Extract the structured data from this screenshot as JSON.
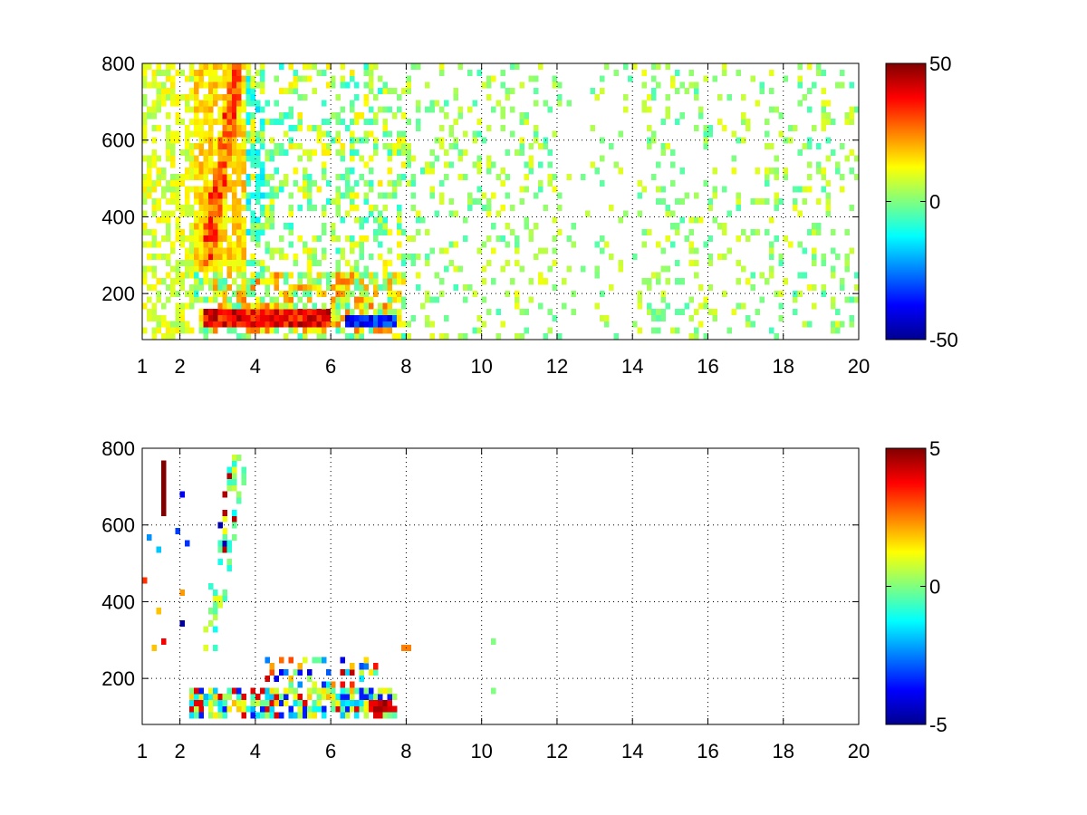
{
  "chart_data": [
    {
      "type": "heatmap",
      "title": "",
      "xlabel": "",
      "ylabel": "",
      "xlim": [
        1,
        20
      ],
      "ylim": [
        80,
        800
      ],
      "x_ticks": [
        1,
        2,
        4,
        6,
        8,
        10,
        12,
        14,
        16,
        18,
        20
      ],
      "x_tick_labels": [
        "1",
        "2",
        "4",
        "6",
        "8",
        "10",
        "12",
        "14",
        "16",
        "18",
        "20"
      ],
      "y_ticks": [
        200,
        400,
        600,
        800
      ],
      "y_tick_labels": [
        "200",
        "400",
        "600",
        "800"
      ],
      "grid": true,
      "colormap": "jet",
      "colorbar": {
        "range": [
          -50,
          50
        ],
        "ticks": [
          -50,
          0,
          50
        ],
        "tick_labels": [
          "-50",
          "0",
          "50"
        ]
      },
      "features": [
        {
          "x_range": [
            2.5,
            6.0
          ],
          "y": 140,
          "value": 40
        },
        {
          "x_range": [
            6.5,
            7.7
          ],
          "y": 130,
          "value": -40
        },
        {
          "x_range": [
            2.6,
            3.6
          ],
          "y_range": [
            280,
            800
          ],
          "value": 30
        },
        {
          "x_range": [
            3.6,
            4.2
          ],
          "y_range": [
            350,
            780
          ],
          "value": -15
        }
      ]
    },
    {
      "type": "heatmap",
      "title": "",
      "xlabel": "",
      "ylabel": "",
      "xlim": [
        1,
        20
      ],
      "ylim": [
        80,
        800
      ],
      "x_ticks": [
        1,
        2,
        4,
        6,
        8,
        10,
        12,
        14,
        16,
        18,
        20
      ],
      "x_tick_labels": [
        "1",
        "2",
        "4",
        "6",
        "8",
        "10",
        "12",
        "14",
        "16",
        "18",
        "20"
      ],
      "y_ticks": [
        200,
        400,
        600,
        800
      ],
      "y_tick_labels": [
        "200",
        "400",
        "600",
        "800"
      ],
      "grid": true,
      "colormap": "jet",
      "colorbar": {
        "range": [
          -5,
          5
        ],
        "ticks": [
          -5,
          0,
          5
        ],
        "tick_labels": [
          "-5",
          "0",
          "5"
        ]
      },
      "features": [
        {
          "x_range": [
            7.0,
            7.6
          ],
          "y": 125,
          "value": 4.5
        },
        {
          "x_range": [
            4.2,
            6.0
          ],
          "y": 140,
          "value": 2
        },
        {
          "x_range": [
            1.5,
            1.6
          ],
          "y_range": [
            620,
            770
          ],
          "value": 5
        },
        {
          "x_range": [
            2.8,
            3.6
          ],
          "y_range": [
            300,
            780
          ],
          "value": 0
        }
      ]
    }
  ]
}
